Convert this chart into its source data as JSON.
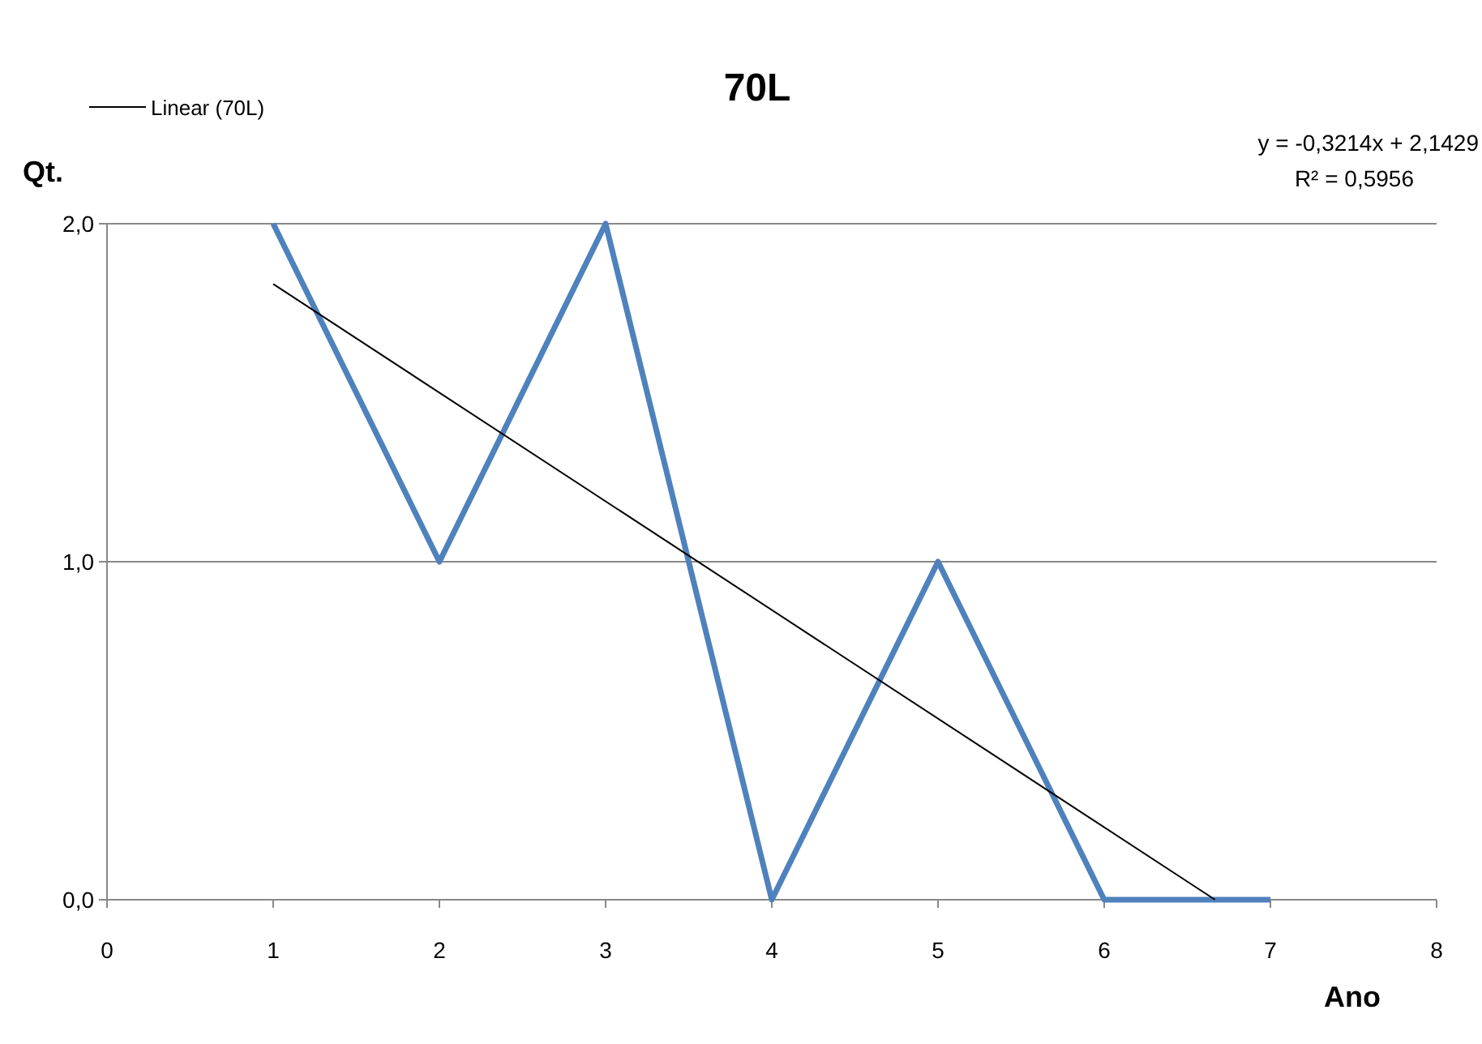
{
  "chart_data": {
    "type": "line",
    "title": "70L",
    "xlabel": "Ano",
    "ylabel": "Qt.",
    "xlim": [
      0,
      8
    ],
    "xticks": [
      0,
      1,
      2,
      3,
      4,
      5,
      6,
      7,
      8
    ],
    "ylim": [
      0,
      2
    ],
    "yticks": [
      {
        "value": 0,
        "label": "0,0"
      },
      {
        "value": 1,
        "label": "1,0"
      },
      {
        "value": 2,
        "label": "2,0"
      }
    ],
    "grid": "y",
    "legend": "top left",
    "marker": "none",
    "line_style": "solid",
    "series": [
      {
        "color": "#4f81bd",
        "x": [
          1,
          2,
          3,
          4,
          5,
          6,
          7
        ],
        "values": [
          2,
          1,
          2,
          0,
          1,
          0,
          0
        ]
      },
      {
        "name": "Linear (70L)",
        "color": "#000000",
        "x": [
          1,
          6.667
        ],
        "values": [
          1.8215,
          0
        ]
      }
    ],
    "annotations": [
      "y = -0,3214x + 2,1429",
      "R² = 0,5956"
    ]
  }
}
